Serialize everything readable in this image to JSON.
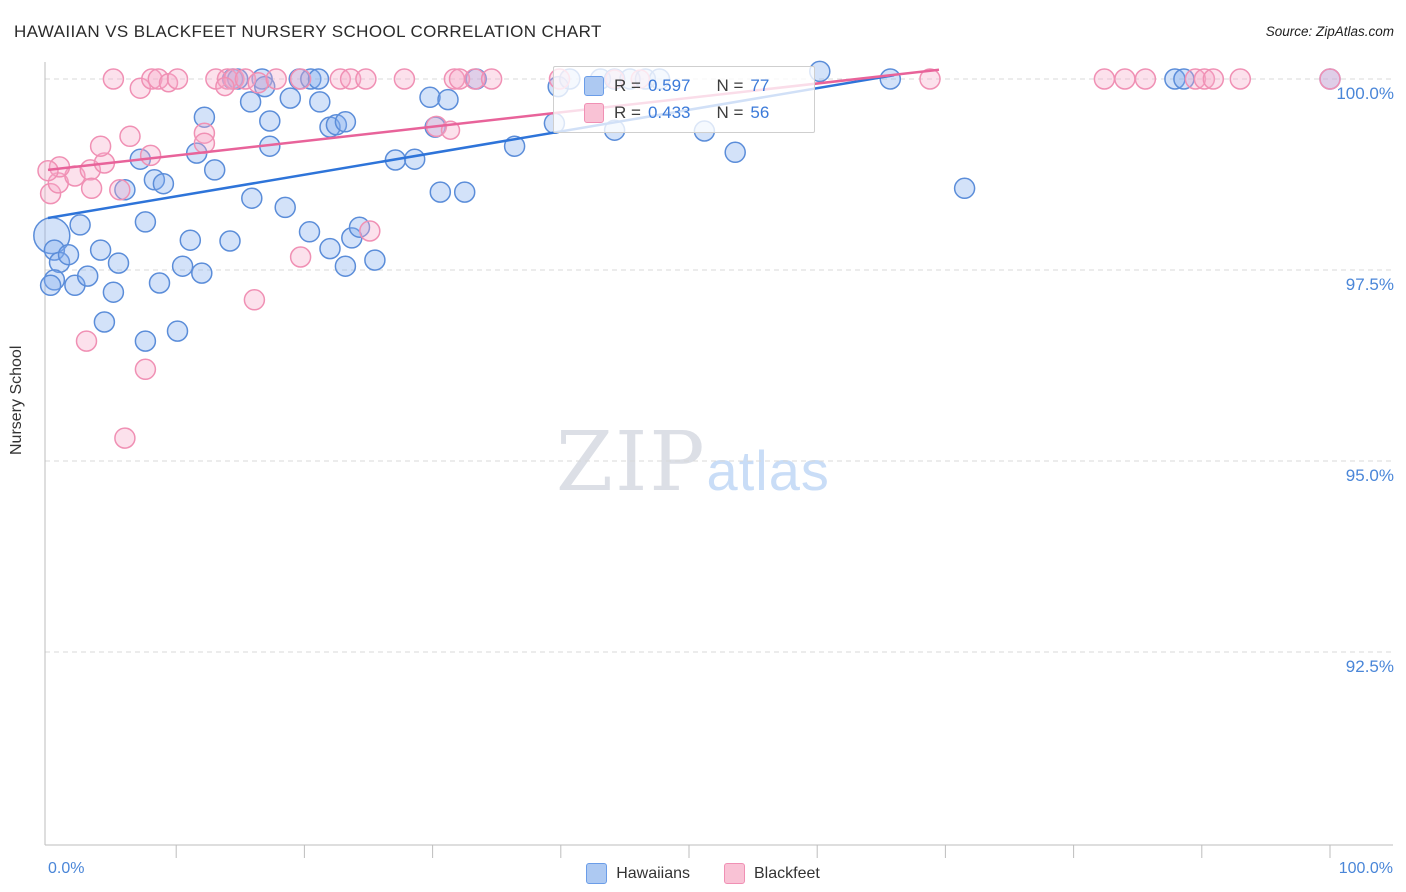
{
  "header": {
    "title": "HAWAIIAN VS BLACKFEET NURSERY SCHOOL CORRELATION CHART",
    "source": "Source: ZipAtlas.com"
  },
  "watermark": {
    "part1": "ZIP",
    "part2": "atlas"
  },
  "legend_box": {
    "rows": [
      {
        "r_label": "R =",
        "r_value": "0.597",
        "n_label": "N =",
        "n_value": "77"
      },
      {
        "r_label": "R =",
        "r_value": "0.433",
        "n_label": "N =",
        "n_value": "56"
      }
    ]
  },
  "bottom_legend": [
    {
      "label": "Hawaiians"
    },
    {
      "label": "Blackfeet"
    }
  ],
  "x_axis": {
    "left_label": "0.0%",
    "right_label": "100.0%"
  },
  "chart_data": {
    "type": "scatter",
    "title": "HAWAIIAN VS BLACKFEET NURSERY SCHOOL CORRELATION CHART",
    "xlabel": "",
    "ylabel": "Nursery School",
    "x_range": [
      0,
      100
    ],
    "y_range": [
      90,
      100.3
    ],
    "grid": "dashed-horizontal",
    "legend_position": "top-center",
    "y_ticks": [
      {
        "value": 100.0,
        "label": "100.0%"
      },
      {
        "value": 97.5,
        "label": "97.5%"
      },
      {
        "value": 95.0,
        "label": "95.0%"
      },
      {
        "value": 92.5,
        "label": "92.5%"
      }
    ],
    "x_tick_step": 10,
    "series": [
      {
        "name": "Hawaiians",
        "R": 0.597,
        "N": 77,
        "color": "#5b8dd9",
        "fill": "rgba(130,173,238,0.35)",
        "points": [
          [
            14.4,
            100,
            10
          ],
          [
            14.8,
            100,
            10
          ],
          [
            16.7,
            100,
            10
          ],
          [
            19.6,
            100,
            10
          ],
          [
            20.5,
            100,
            10
          ],
          [
            21.1,
            100,
            10
          ],
          [
            33.4,
            100,
            10
          ],
          [
            39.8,
            99.9,
            10
          ],
          [
            40.7,
            100,
            10
          ],
          [
            43.1,
            100,
            10
          ],
          [
            44.2,
            100,
            10
          ],
          [
            45.4,
            100,
            10
          ],
          [
            46.6,
            100,
            10
          ],
          [
            47.7,
            100,
            10
          ],
          [
            60.2,
            100.1,
            10
          ],
          [
            65.7,
            100,
            10
          ],
          [
            87.9,
            100,
            10
          ],
          [
            88.6,
            100,
            10
          ],
          [
            100,
            100,
            10
          ],
          [
            12.2,
            99.5,
            10
          ],
          [
            15.8,
            99.7,
            10
          ],
          [
            16.9,
            99.9,
            10
          ],
          [
            18.9,
            99.75,
            10
          ],
          [
            21.2,
            99.7,
            10
          ],
          [
            29.8,
            99.76,
            10
          ],
          [
            31.2,
            99.73,
            10
          ],
          [
            17.3,
            99.45,
            10
          ],
          [
            22.0,
            99.37,
            10
          ],
          [
            22.5,
            99.4,
            10
          ],
          [
            23.2,
            99.44,
            10
          ],
          [
            30.2,
            99.37,
            10
          ],
          [
            39.5,
            99.42,
            10
          ],
          [
            44.2,
            99.33,
            10
          ],
          [
            7.2,
            98.95,
            10
          ],
          [
            11.6,
            99.03,
            10
          ],
          [
            13.0,
            98.81,
            10
          ],
          [
            17.3,
            99.12,
            10
          ],
          [
            27.1,
            98.94,
            10
          ],
          [
            28.6,
            98.95,
            10
          ],
          [
            30.6,
            98.52,
            10
          ],
          [
            32.5,
            98.52,
            10
          ],
          [
            36.4,
            99.12,
            10
          ],
          [
            51.2,
            99.32,
            10
          ],
          [
            53.6,
            99.04,
            10
          ],
          [
            71.5,
            98.57,
            10
          ],
          [
            6.0,
            98.55,
            10
          ],
          [
            8.3,
            98.68,
            10
          ],
          [
            9.0,
            98.63,
            10
          ],
          [
            15.9,
            98.44,
            10
          ],
          [
            18.5,
            98.32,
            10
          ],
          [
            2.5,
            98.09,
            10
          ],
          [
            7.6,
            98.13,
            10
          ],
          [
            11.1,
            97.89,
            10
          ],
          [
            14.2,
            97.88,
            10
          ],
          [
            20.4,
            98.0,
            10
          ],
          [
            23.7,
            97.92,
            10
          ],
          [
            24.3,
            98.06,
            10
          ],
          [
            0.3,
            97.95,
            18
          ],
          [
            0.5,
            97.76,
            10
          ],
          [
            0.9,
            97.6,
            10
          ],
          [
            1.6,
            97.7,
            10
          ],
          [
            4.1,
            97.76,
            10
          ],
          [
            5.5,
            97.59,
            10
          ],
          [
            22.0,
            97.78,
            10
          ],
          [
            23.2,
            97.55,
            10
          ],
          [
            25.5,
            97.63,
            10
          ],
          [
            0.5,
            97.37,
            10
          ],
          [
            0.2,
            97.3,
            10
          ],
          [
            2.1,
            97.3,
            10
          ],
          [
            3.1,
            97.42,
            10
          ],
          [
            5.1,
            97.21,
            10
          ],
          [
            8.7,
            97.33,
            10
          ],
          [
            10.5,
            97.55,
            10
          ],
          [
            12.0,
            97.46,
            10
          ],
          [
            4.4,
            96.82,
            10
          ],
          [
            7.6,
            96.57,
            10
          ],
          [
            10.1,
            96.7,
            10
          ]
        ]
      },
      {
        "name": "Blackfeet",
        "R": 0.433,
        "N": 56,
        "color": "#f090b4",
        "fill": "rgba(247,170,200,0.35)",
        "points": [
          [
            5.1,
            100,
            10
          ],
          [
            7.2,
            99.88,
            10
          ],
          [
            8.1,
            100,
            10
          ],
          [
            8.6,
            100,
            10
          ],
          [
            9.4,
            99.95,
            9
          ],
          [
            10.1,
            100,
            10
          ],
          [
            13.1,
            100,
            10
          ],
          [
            14.0,
            100,
            10
          ],
          [
            14.5,
            100,
            10
          ],
          [
            15.4,
            100,
            10
          ],
          [
            16.4,
            99.95,
            10
          ],
          [
            17.8,
            100,
            10
          ],
          [
            19.7,
            100,
            10
          ],
          [
            22.8,
            100,
            10
          ],
          [
            23.6,
            100,
            10
          ],
          [
            24.8,
            100,
            10
          ],
          [
            27.8,
            100,
            10
          ],
          [
            31.7,
            100,
            10
          ],
          [
            32.1,
            100,
            10
          ],
          [
            33.3,
            100,
            10
          ],
          [
            34.6,
            100,
            10
          ],
          [
            39.9,
            100,
            10
          ],
          [
            44.2,
            100,
            9
          ],
          [
            46.2,
            100,
            9
          ],
          [
            68.8,
            100,
            10
          ],
          [
            82.4,
            100,
            10
          ],
          [
            84.0,
            100,
            10
          ],
          [
            85.6,
            100,
            10
          ],
          [
            89.5,
            100,
            10
          ],
          [
            90.2,
            100,
            10
          ],
          [
            90.9,
            100,
            10
          ],
          [
            93.0,
            100,
            10
          ],
          [
            100,
            100,
            10
          ],
          [
            0.2,
            98.5,
            10
          ],
          [
            0.8,
            98.64,
            10
          ],
          [
            2.1,
            98.73,
            10
          ],
          [
            3.3,
            98.81,
            10
          ],
          [
            4.4,
            98.9,
            10
          ],
          [
            5.6,
            98.55,
            10
          ],
          [
            4.1,
            99.12,
            10
          ],
          [
            6.4,
            99.25,
            10
          ],
          [
            12.2,
            99.29,
            10
          ],
          [
            30.3,
            99.38,
            10
          ],
          [
            0.9,
            98.85,
            10
          ],
          [
            8.0,
            99.0,
            10
          ],
          [
            31.4,
            99.33,
            9
          ],
          [
            12.2,
            99.16,
            10
          ],
          [
            25.1,
            98.01,
            10
          ],
          [
            19.7,
            97.67,
            10
          ],
          [
            16.1,
            97.11,
            10
          ],
          [
            3.0,
            96.57,
            10
          ],
          [
            7.6,
            96.2,
            10
          ],
          [
            6.0,
            95.3,
            10
          ],
          [
            0.0,
            98.8,
            10
          ],
          [
            3.4,
            98.57,
            10
          ],
          [
            13.8,
            99.9,
            9
          ]
        ]
      }
    ],
    "trendlines": [
      {
        "name": "Hawaiians",
        "color": "#2e74d9",
        "x1": 0,
        "y1": 98.18,
        "x2": 66.0,
        "y2": 100.05
      },
      {
        "name": "Blackfeet",
        "color": "#e8639a",
        "x1": 0,
        "y1": 98.81,
        "x2": 69.5,
        "y2": 100.12
      }
    ]
  }
}
